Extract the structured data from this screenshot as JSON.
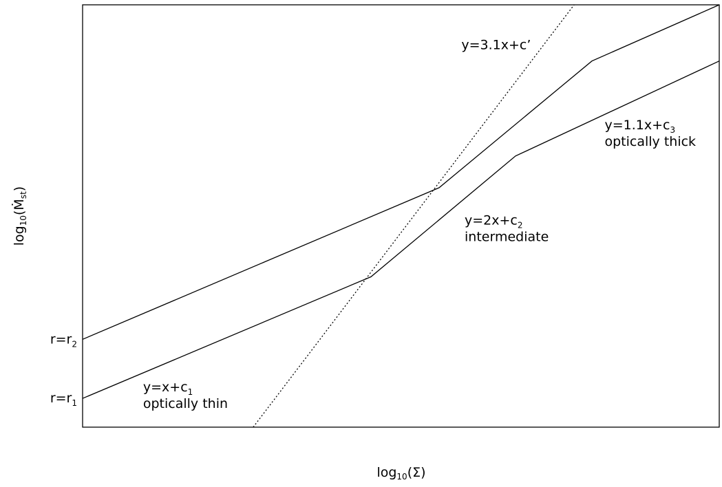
{
  "chart_data": {
    "type": "line",
    "title": "",
    "xlabel": {
      "prefix": "log",
      "sub": "10",
      "arg": "(Σ)"
    },
    "ylabel": {
      "prefix": "log",
      "sub": "10",
      "arg": "(Ṁ",
      "arg_sub": "st",
      "close": ")"
    },
    "xlim": [
      0,
      1
    ],
    "ylim": [
      0,
      1
    ],
    "grid": false,
    "legend": "none",
    "y_ticks": [
      {
        "main": "r=r",
        "sub": "1",
        "y": 0.068
      },
      {
        "main": "r=r",
        "sub": "2",
        "y": 0.208
      }
    ],
    "series": [
      {
        "style": "solid",
        "x": [
          0,
          0.453,
          0.68,
          1
        ],
        "y": [
          0.068,
          0.356,
          0.642,
          0.867
        ]
      },
      {
        "style": "solid",
        "x": [
          0,
          0.56,
          0.8,
          1
        ],
        "y": [
          0.208,
          0.567,
          0.867,
          1.0
        ]
      },
      {
        "style": "dotted",
        "x": [
          0.268,
          0.772
        ],
        "y": [
          0.0,
          1.0
        ]
      }
    ],
    "annotations": [
      {
        "main": "y=x+c",
        "sub": "1",
        "line2": "optically thin",
        "x": 0.095,
        "y": 0.085
      },
      {
        "main": "y=2x+c",
        "sub": "2",
        "line2": "intermediate",
        "x": 0.6,
        "y": 0.48
      },
      {
        "main": "y=1.1x+c",
        "sub": "3",
        "line2": "optically thick",
        "x": 0.82,
        "y": 0.705
      },
      {
        "main": "y=3.1x+c’",
        "sub": "",
        "line2": "",
        "x": 0.595,
        "y": 0.895
      }
    ]
  }
}
